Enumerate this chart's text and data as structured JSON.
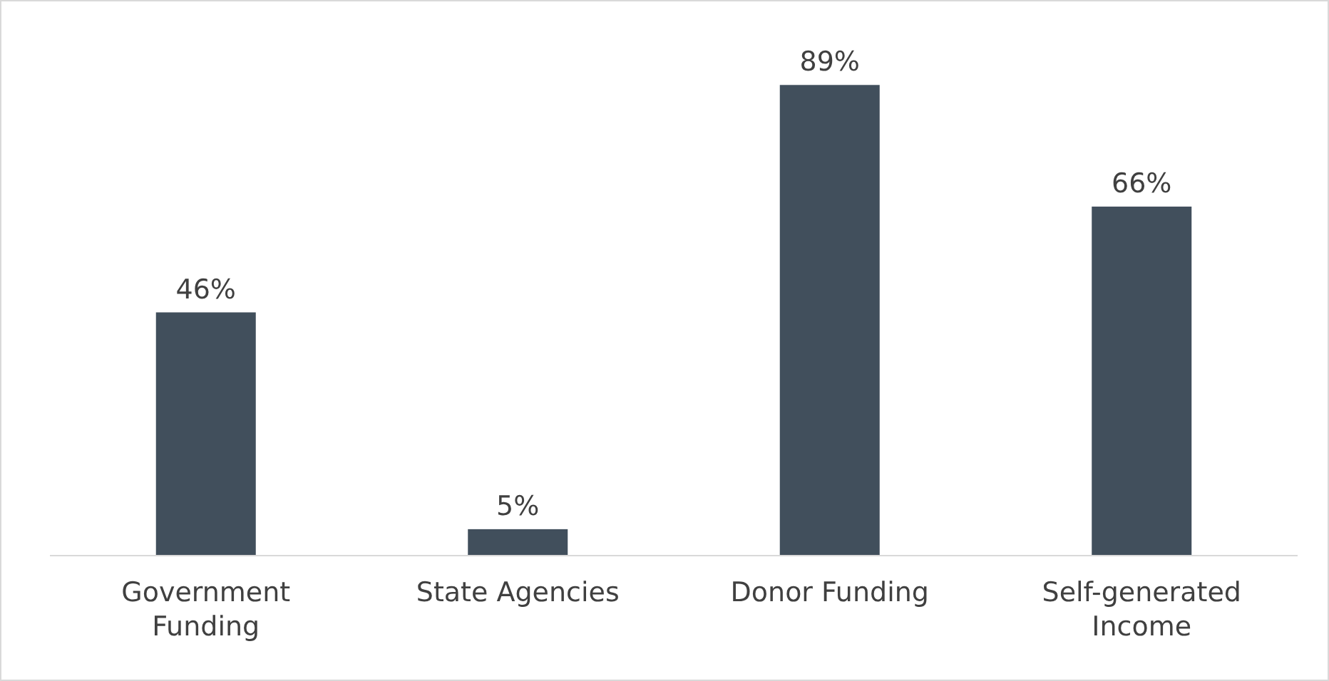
{
  "chart_data": {
    "type": "bar",
    "categories": [
      "Government Funding",
      "State Agencies",
      "Donor Funding",
      "Self-generated Income"
    ],
    "values": [
      46,
      5,
      89,
      66
    ],
    "value_labels": [
      "46%",
      "5%",
      "89%",
      "66%"
    ],
    "color": "#414f5c"
  }
}
